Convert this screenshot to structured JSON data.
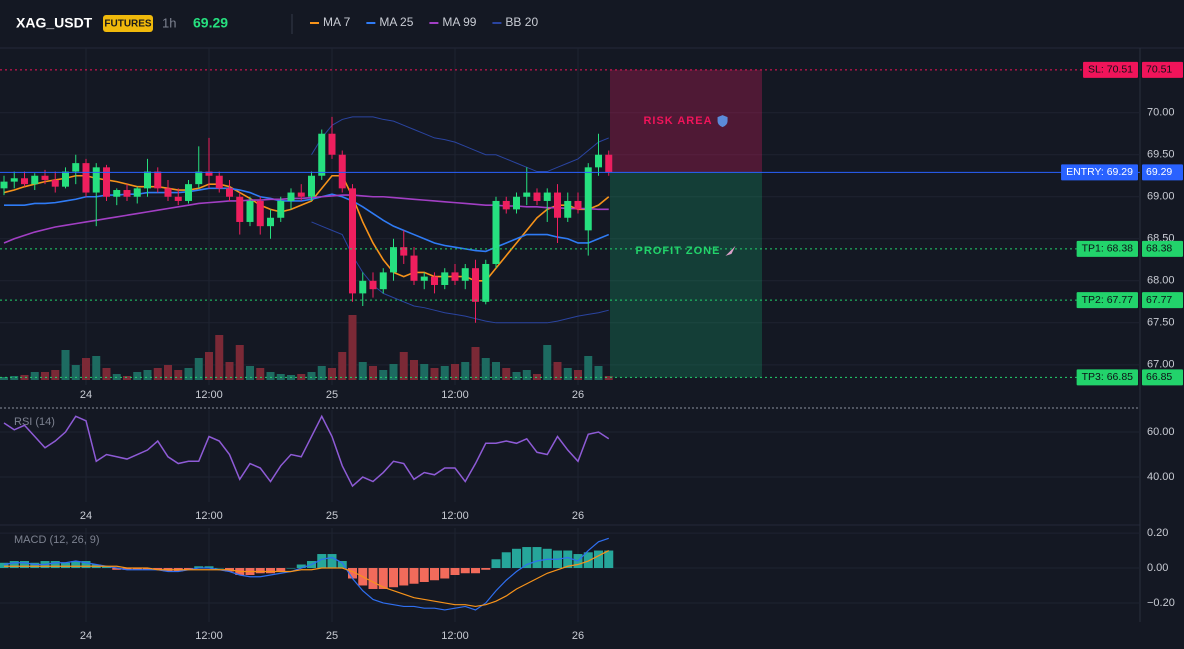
{
  "header": {
    "symbol": "XAG_USDT",
    "badge": "FUTURES",
    "interval": "1h",
    "price": 69.29
  },
  "chart_data": [
    {
      "type": "candlestick",
      "categories": [
        null,
        null,
        null,
        null,
        null,
        null,
        null,
        null,
        "24",
        null,
        null,
        null,
        null,
        null,
        null,
        null,
        null,
        null,
        null,
        null,
        "12:00",
        null,
        null,
        null,
        null,
        null,
        null,
        null,
        null,
        null,
        null,
        null,
        "25",
        null,
        null,
        null,
        null,
        null,
        null,
        null,
        null,
        null,
        null,
        null,
        "12:00",
        null,
        null,
        null,
        null,
        null,
        null,
        null,
        null,
        null,
        null,
        null,
        "26",
        null,
        null,
        null
      ],
      "open": [
        69.1,
        69.18,
        69.22,
        69.15,
        69.25,
        69.2,
        69.12,
        69.3,
        69.4,
        69.05,
        69.35,
        69.0,
        69.08,
        69.0,
        69.1,
        69.3,
        69.1,
        69.0,
        68.95,
        69.15,
        69.3,
        69.25,
        69.1,
        69.0,
        68.7,
        68.95,
        68.65,
        68.75,
        68.95,
        69.05,
        69.0,
        69.25,
        69.75,
        69.5,
        69.1,
        67.85,
        68.0,
        67.9,
        68.1,
        68.4,
        68.3,
        68.0,
        68.05,
        67.95,
        68.1,
        68.0,
        68.15,
        67.75,
        68.2,
        68.95,
        68.85,
        69.0,
        69.05,
        68.95,
        69.05,
        68.75,
        68.95,
        68.6,
        69.35,
        69.5
      ],
      "high": [
        69.25,
        69.3,
        69.3,
        69.28,
        69.32,
        69.3,
        69.35,
        69.5,
        69.45,
        69.4,
        69.38,
        69.1,
        69.15,
        69.12,
        69.45,
        69.35,
        69.2,
        69.1,
        69.2,
        69.6,
        69.7,
        69.3,
        69.2,
        69.05,
        69.0,
        69.0,
        68.85,
        69.0,
        69.1,
        69.15,
        69.3,
        69.8,
        69.95,
        69.55,
        69.15,
        68.1,
        68.1,
        68.15,
        68.5,
        68.6,
        68.4,
        68.1,
        68.1,
        68.15,
        68.2,
        68.2,
        68.25,
        68.25,
        69.0,
        69.0,
        69.05,
        69.35,
        69.1,
        69.1,
        69.15,
        69.05,
        69.05,
        69.4,
        69.75,
        69.55
      ],
      "low": [
        69.02,
        69.1,
        69.12,
        69.08,
        69.15,
        69.05,
        69.1,
        69.15,
        69.0,
        68.65,
        68.95,
        68.9,
        68.95,
        68.92,
        69.0,
        69.05,
        68.95,
        68.9,
        68.92,
        69.1,
        69.1,
        69.05,
        68.95,
        68.55,
        68.65,
        68.55,
        68.5,
        68.7,
        68.85,
        68.95,
        68.95,
        69.2,
        69.45,
        69.05,
        67.75,
        67.7,
        67.8,
        67.85,
        68.0,
        68.2,
        67.95,
        67.9,
        67.85,
        67.9,
        67.95,
        67.9,
        67.5,
        67.72,
        68.15,
        68.8,
        68.8,
        68.9,
        68.9,
        68.7,
        68.45,
        68.7,
        68.8,
        68.3,
        69.25,
        69.25
      ],
      "close": [
        69.18,
        69.22,
        69.15,
        69.25,
        69.2,
        69.12,
        69.3,
        69.4,
        69.05,
        69.35,
        69.0,
        69.08,
        69.0,
        69.1,
        69.3,
        69.1,
        69.0,
        68.95,
        69.15,
        69.3,
        69.25,
        69.1,
        69.0,
        68.7,
        68.95,
        68.65,
        68.75,
        68.95,
        69.05,
        69.0,
        69.25,
        69.75,
        69.5,
        69.1,
        67.85,
        68.0,
        67.9,
        68.1,
        68.4,
        68.3,
        68.0,
        68.05,
        67.95,
        68.1,
        68.0,
        68.15,
        67.75,
        68.2,
        68.95,
        68.85,
        69.0,
        69.05,
        68.95,
        69.05,
        68.75,
        68.95,
        68.85,
        69.35,
        69.5,
        69.29
      ],
      "volume": [
        3,
        4,
        5,
        8,
        8,
        10,
        30,
        15,
        22,
        24,
        12,
        6,
        4,
        8,
        10,
        12,
        15,
        10,
        12,
        22,
        28,
        45,
        18,
        35,
        14,
        12,
        8,
        6,
        5,
        6,
        8,
        14,
        12,
        28,
        65,
        18,
        14,
        10,
        16,
        28,
        20,
        16,
        12,
        14,
        16,
        18,
        33,
        22,
        18,
        12,
        8,
        10,
        6,
        35,
        18,
        12,
        10,
        24,
        14,
        4
      ],
      "vlim": [
        0,
        100
      ],
      "up_color": "#26e07f",
      "down_color": "#ee1f5e",
      "vol_up_color": "#1d6b61",
      "vol_down_color": "#7b2936",
      "overlays": [
        {
          "name": "MA 7",
          "color": "#f7931a",
          "values": [
            69.05,
            69.08,
            69.12,
            69.15,
            69.18,
            69.2,
            69.22,
            69.25,
            69.25,
            69.22,
            69.2,
            69.18,
            69.15,
            69.12,
            69.12,
            69.12,
            69.1,
            69.08,
            69.08,
            69.1,
            69.15,
            69.15,
            69.12,
            69.05,
            68.98,
            68.9,
            68.85,
            68.82,
            68.85,
            68.9,
            68.95,
            69.1,
            69.25,
            69.25,
            69.0,
            68.7,
            68.45,
            68.25,
            68.1,
            68.05,
            68.1,
            68.1,
            68.05,
            68.05,
            68.05,
            68.05,
            68.0,
            68.0,
            68.15,
            68.3,
            68.45,
            68.6,
            68.75,
            68.85,
            68.9,
            68.9,
            68.85,
            68.85,
            68.9,
            69.0
          ]
        },
        {
          "name": "MA 25",
          "color": "#2f7bf5",
          "values": [
            68.9,
            68.9,
            68.9,
            68.92,
            68.92,
            68.93,
            68.95,
            68.97,
            69.0,
            69.0,
            69.02,
            69.02,
            69.03,
            69.03,
            69.05,
            69.05,
            69.05,
            69.05,
            69.06,
            69.08,
            69.1,
            69.1,
            69.1,
            69.08,
            69.05,
            69.0,
            68.98,
            68.95,
            68.95,
            68.95,
            68.97,
            69.0,
            69.03,
            69.0,
            68.95,
            68.88,
            68.8,
            68.72,
            68.65,
            68.6,
            68.55,
            68.5,
            68.45,
            68.42,
            68.4,
            68.38,
            68.36,
            68.35,
            68.4,
            68.45,
            68.5,
            68.55,
            68.55,
            68.55,
            68.52,
            68.5,
            68.45,
            68.45,
            68.5,
            68.55
          ]
        },
        {
          "name": "MA 99",
          "color": "#a23fc4",
          "values": [
            68.45,
            68.5,
            68.54,
            68.58,
            68.61,
            68.64,
            68.66,
            68.68,
            68.7,
            68.72,
            68.74,
            68.76,
            68.78,
            68.8,
            68.82,
            68.84,
            68.86,
            68.88,
            68.9,
            68.92,
            68.93,
            68.94,
            68.95,
            68.95,
            68.96,
            68.96,
            68.97,
            68.97,
            68.98,
            68.98,
            68.99,
            69.0,
            69.01,
            69.02,
            69.02,
            69.01,
            69.0,
            69.0,
            68.99,
            68.98,
            68.97,
            68.96,
            68.95,
            68.94,
            68.93,
            68.92,
            68.91,
            68.9,
            68.9,
            68.89,
            68.89,
            68.88,
            68.88,
            68.87,
            68.87,
            68.86,
            68.86,
            68.86,
            68.85,
            68.85
          ]
        },
        {
          "name": "BB 20",
          "color": "#2a44a0",
          "upper": [
            null,
            null,
            null,
            null,
            null,
            null,
            null,
            null,
            null,
            null,
            null,
            null,
            null,
            null,
            null,
            null,
            null,
            null,
            null,
            null,
            null,
            null,
            null,
            null,
            null,
            null,
            null,
            null,
            null,
            null,
            69.5,
            69.7,
            69.85,
            69.92,
            69.95,
            69.95,
            69.95,
            69.92,
            69.9,
            69.85,
            69.8,
            69.75,
            69.7,
            69.68,
            69.65,
            69.6,
            69.55,
            69.5,
            69.5,
            69.45,
            69.4,
            69.35,
            69.3,
            69.3,
            69.35,
            69.4,
            69.45,
            69.55,
            69.65,
            69.7
          ],
          "lower": [
            null,
            null,
            null,
            null,
            null,
            null,
            null,
            null,
            null,
            null,
            null,
            null,
            null,
            null,
            null,
            null,
            null,
            null,
            null,
            null,
            null,
            null,
            null,
            null,
            null,
            null,
            null,
            null,
            null,
            null,
            68.7,
            68.65,
            68.6,
            68.55,
            68.3,
            68.1,
            67.95,
            67.85,
            67.8,
            67.75,
            67.7,
            67.68,
            67.65,
            67.62,
            67.6,
            67.58,
            67.55,
            67.52,
            67.5,
            67.5,
            67.5,
            67.5,
            67.5,
            67.5,
            67.52,
            67.55,
            67.58,
            67.6,
            67.62,
            67.65
          ]
        }
      ],
      "levels": [
        {
          "label": "SL: 70.51",
          "value": 70.51,
          "color": "#f0145a",
          "style": "dotted"
        },
        {
          "label": "ENTRY: 69.29",
          "value": 69.29,
          "color": "#2962ff",
          "style": "solid"
        },
        {
          "label": "TP1: 68.38",
          "value": 68.38,
          "color": "#22d36b",
          "style": "dotted"
        },
        {
          "label": "TP2: 67.77",
          "value": 67.77,
          "color": "#22d36b",
          "style": "dotted"
        },
        {
          "label": "TP3: 66.85",
          "value": 66.85,
          "color": "#22d36b",
          "style": "dotted"
        }
      ],
      "zones": [
        {
          "label": "RISK AREA",
          "top": 70.51,
          "bottom": 69.29,
          "color": "#e91e63",
          "text_color": "#f0145a"
        },
        {
          "label": "PROFIT ZONE",
          "top": 69.29,
          "bottom": 66.85,
          "color": "#16a36a",
          "text_color": "#22d36b"
        }
      ],
      "ylim": [
        66.76,
        70.77
      ],
      "yticks": [
        {
          "value": 67,
          "label": "67.00"
        },
        {
          "value": 67.5,
          "label": "67.50"
        },
        {
          "value": 68,
          "label": "68.00"
        },
        {
          "value": 68.5,
          "label": "68.50"
        },
        {
          "value": 69,
          "label": "69.00"
        },
        {
          "value": 69.5,
          "label": "69.50"
        },
        {
          "value": 70,
          "label": "70.00"
        }
      ],
      "grid": true
    },
    {
      "type": "line",
      "title": "RSI (14)",
      "series": [
        {
          "color": "#8e5bd6",
          "values": [
            64,
            61,
            63,
            58,
            53,
            56,
            60,
            67,
            65,
            47,
            50,
            49,
            48,
            50,
            52,
            56,
            49,
            46,
            47,
            47,
            58,
            56,
            50,
            39,
            46,
            44,
            38,
            45,
            50,
            49,
            58,
            67,
            58,
            45,
            36,
            40,
            38,
            42,
            47,
            46,
            39,
            42,
            41,
            44,
            44,
            38,
            46,
            55,
            55,
            56,
            55,
            57,
            51,
            50,
            58,
            52,
            47,
            59,
            60,
            57
          ]
        }
      ],
      "ylim": [
        28.9,
        69.8
      ],
      "yticks": [
        {
          "value": 40,
          "label": "40.00"
        },
        {
          "value": 60,
          "label": "60.00"
        }
      ],
      "grid": true
    },
    {
      "type": "macd",
      "title": "MACD (12, 26, 9)",
      "histogram": [
        0.03,
        0.04,
        0.04,
        0.03,
        0.04,
        0.04,
        0.03,
        0.04,
        0.04,
        0.02,
        0.01,
        -0.01,
        -0.01,
        -0.01,
        -0.01,
        -0.01,
        -0.02,
        -0.02,
        -0.01,
        0.01,
        0.01,
        0.0,
        -0.02,
        -0.04,
        -0.04,
        -0.03,
        -0.03,
        -0.02,
        0.0,
        0.02,
        0.04,
        0.08,
        0.08,
        0.04,
        -0.06,
        -0.1,
        -0.12,
        -0.12,
        -0.11,
        -0.1,
        -0.09,
        -0.08,
        -0.07,
        -0.06,
        -0.04,
        -0.03,
        -0.03,
        -0.01,
        0.05,
        0.09,
        0.11,
        0.12,
        0.12,
        0.11,
        0.1,
        0.1,
        0.08,
        0.09,
        0.1,
        0.1
      ],
      "hist_up_color": "#26a69a",
      "hist_down_color": "#f26b5b",
      "series": [
        {
          "color": "#2f6ff0",
          "values": [
            0.02,
            0.03,
            0.03,
            0.02,
            0.02,
            0.03,
            0.03,
            0.04,
            0.03,
            0.02,
            0.01,
            0.0,
            -0.01,
            -0.01,
            -0.01,
            -0.01,
            -0.02,
            -0.02,
            -0.01,
            0.0,
            0.0,
            -0.01,
            -0.02,
            -0.04,
            -0.05,
            -0.05,
            -0.04,
            -0.03,
            -0.02,
            0.0,
            0.02,
            0.05,
            0.06,
            0.03,
            -0.06,
            -0.13,
            -0.18,
            -0.2,
            -0.21,
            -0.22,
            -0.22,
            -0.23,
            -0.23,
            -0.24,
            -0.23,
            -0.22,
            -0.24,
            -0.2,
            -0.13,
            -0.07,
            -0.02,
            0.02,
            0.04,
            0.05,
            0.05,
            0.06,
            0.04,
            0.1,
            0.15,
            0.17
          ]
        },
        {
          "color": "#f7931a",
          "values": [
            0.01,
            0.01,
            0.01,
            0.01,
            0.01,
            0.01,
            0.01,
            0.01,
            0.01,
            0.01,
            0.01,
            0.01,
            0.0,
            0.0,
            0.0,
            -0.01,
            -0.01,
            -0.01,
            -0.01,
            -0.01,
            -0.01,
            -0.01,
            -0.01,
            -0.02,
            -0.02,
            -0.02,
            -0.02,
            -0.02,
            -0.02,
            -0.01,
            -0.01,
            0.0,
            0.0,
            0.0,
            -0.02,
            -0.05,
            -0.08,
            -0.11,
            -0.13,
            -0.15,
            -0.17,
            -0.18,
            -0.19,
            -0.2,
            -0.21,
            -0.21,
            -0.22,
            -0.21,
            -0.19,
            -0.16,
            -0.12,
            -0.09,
            -0.06,
            -0.03,
            -0.01,
            0.01,
            0.02,
            0.04,
            0.07,
            0.1
          ]
        }
      ],
      "ylim": [
        -0.309,
        0.229
      ],
      "yticks": [
        {
          "value": -0.2,
          "label": "−0.20"
        },
        {
          "value": 0,
          "label": "0.00"
        },
        {
          "value": 0.2,
          "label": "0.20"
        }
      ],
      "grid": true
    }
  ]
}
